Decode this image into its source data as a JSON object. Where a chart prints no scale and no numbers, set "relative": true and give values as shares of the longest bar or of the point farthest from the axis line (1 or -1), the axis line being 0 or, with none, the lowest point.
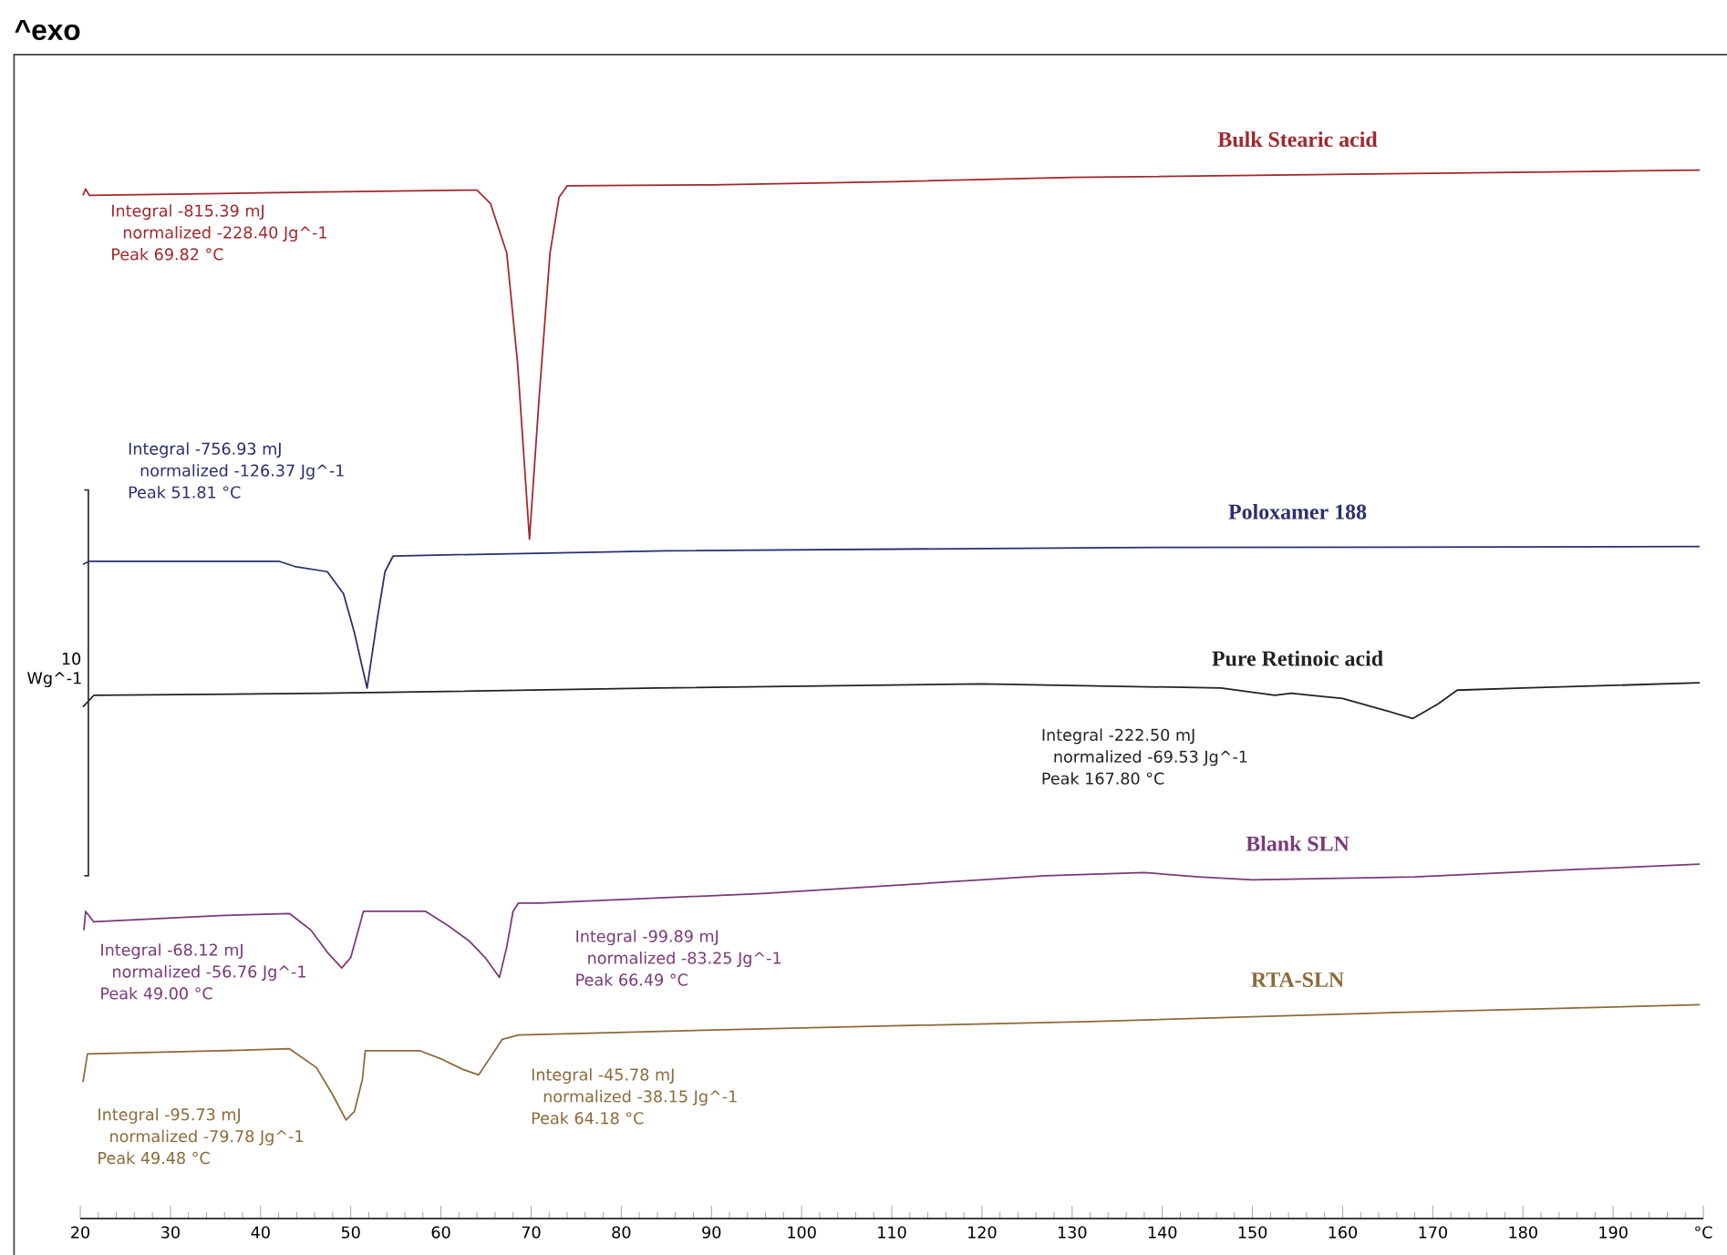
{
  "chart_data": {
    "type": "line",
    "title": "^exo",
    "relative": true,
    "tick_labels": "x",
    "xlim": [
      20,
      200
    ],
    "xticks": [
      20,
      30,
      40,
      50,
      60,
      70,
      80,
      90,
      100,
      110,
      120,
      130,
      140,
      150,
      160,
      170,
      180,
      190,
      {
        "value": 200,
        "label": "°C"
      }
    ],
    "series": [
      {
        "name": "Bulk Stearic acid",
        "color": "#a0282d",
        "x": [
          20.3,
          20.6,
          21,
          30,
          45,
          55,
          64,
          65.5,
          67.3,
          68.5,
          69.82,
          70.9,
          72.1,
          73.1,
          74,
          90,
          110,
          130,
          150,
          170,
          190,
          199.6
        ],
        "values": [
          0.976,
          0.982,
          0.976,
          0.977,
          0.979,
          0.98,
          0.981,
          0.968,
          0.921,
          0.816,
          0.648,
          0.784,
          0.921,
          0.974,
          0.985,
          0.986,
          0.989,
          0.993,
          0.995,
          0.997,
          0.999,
          1
        ]
      },
      {
        "name": "Poloxamer 188",
        "color": "#2a2f6e",
        "x": [
          20.3,
          21,
          42,
          43.8,
          47.4,
          49.2,
          50.4,
          51.81,
          53,
          53.8,
          54.7,
          85,
          135,
          199.6
        ],
        "values": [
          0.624,
          0.627,
          0.627,
          0.622,
          0.617,
          0.596,
          0.559,
          0.506,
          0.575,
          0.617,
          0.632,
          0.637,
          0.64,
          0.641
        ]
      },
      {
        "name": "Pure Retinoic acid",
        "color": "#222222",
        "x": [
          20.3,
          21.5,
          47,
          84,
          120,
          146.5,
          152.5,
          154.3,
          160,
          164.6,
          167.8,
          170.6,
          172.7,
          180,
          199.6
        ],
        "values": [
          0.488,
          0.499,
          0.501,
          0.506,
          0.51,
          0.506,
          0.499,
          0.501,
          0.496,
          0.485,
          0.477,
          0.491,
          0.504,
          0.506,
          0.511
        ]
      },
      {
        "name": "Blank SLN",
        "color": "#7a3a78",
        "x": [
          20.4,
          20.6,
          21.5,
          35.4,
          43.2,
          45.6,
          47.4,
          49.0,
          50,
          51,
          51.4,
          58.3,
          60.7,
          63.1,
          64.9,
          66.49,
          67.3,
          68,
          68.6,
          71,
          95.7,
          119.9,
          127,
          138,
          144,
          150,
          168,
          186,
          199.6
        ],
        "values": [
          0.275,
          0.293,
          0.283,
          0.289,
          0.291,
          0.275,
          0.254,
          0.239,
          0.249,
          0.28,
          0.293,
          0.293,
          0.28,
          0.265,
          0.249,
          0.23,
          0.259,
          0.293,
          0.301,
          0.301,
          0.31,
          0.323,
          0.327,
          0.33,
          0.326,
          0.323,
          0.326,
          0.333,
          0.338
        ]
      },
      {
        "name": "RTA-SLN",
        "color": "#8b6a3a",
        "x": [
          20.3,
          20.8,
          35.4,
          43.2,
          46.2,
          48,
          49.48,
          50.4,
          51.3,
          51.6,
          57.7,
          60.1,
          62.5,
          64.18,
          65.5,
          66.8,
          68.6,
          95.7,
          132,
          168,
          199.6
        ],
        "values": [
          0.13,
          0.157,
          0.16,
          0.162,
          0.144,
          0.118,
          0.094,
          0.102,
          0.133,
          0.16,
          0.16,
          0.152,
          0.142,
          0.137,
          0.154,
          0.171,
          0.175,
          0.181,
          0.188,
          0.197,
          0.204
        ]
      }
    ],
    "annotations": [
      "10",
      "Wg^-1",
      "Integral -815.39 mJ",
      "normalized -228.40 Jg^-1",
      "Peak 69.82 °C",
      "Integral -756.93 mJ",
      "normalized -126.37 Jg^-1",
      "Peak 51.81 °C",
      "Integral -222.50 mJ",
      "normalized -69.53 Jg^-1",
      "Peak 167.80 °C",
      "Integral -68.12 mJ",
      "normalized -56.76 Jg^-1",
      "Peak 49.00 °C",
      "Integral -99.89 mJ",
      "normalized -83.25 Jg^-1",
      "Peak 66.49 °C",
      "Integral -95.73 mJ",
      "normalized -79.78 Jg^-1",
      "Peak 49.48 °C",
      "Integral -45.78 mJ",
      "normalized -38.15 Jg^-1",
      "Peak 64.18 °C"
    ]
  }
}
